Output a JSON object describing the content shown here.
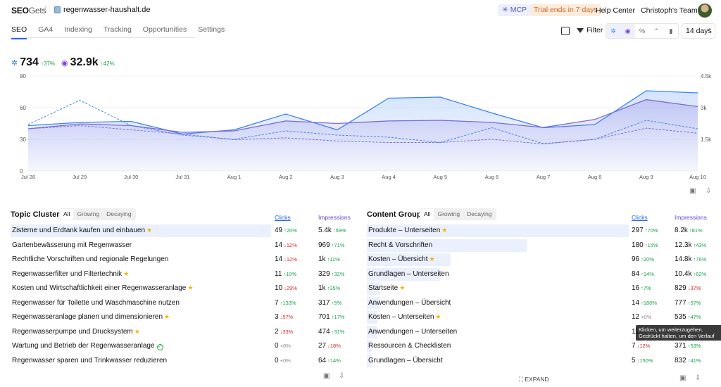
{
  "header": {
    "logo_main": "SEO",
    "logo_sub": "Gets",
    "site": "regenwasser-haushalt.de",
    "mcp": "✳ MCP",
    "trial": "Trial ends in 7 days",
    "help": "Help Center",
    "team": "Christoph's Team"
  },
  "tabs": [
    "SEO",
    "GA4",
    "Indexing",
    "Tracking",
    "Opportunities",
    "Settings"
  ],
  "toolbar": {
    "filter": "Filter",
    "days": "14 days"
  },
  "metrics": {
    "clicks": {
      "value": "734",
      "change": "↑37%"
    },
    "impressions": {
      "value": "32.9k",
      "change": "↑42%"
    }
  },
  "colors": {
    "clicks": "#3b82f6",
    "impressions": "#7c6ad6",
    "up": "#16a34a",
    "down": "#dc2626"
  },
  "chart_data": {
    "type": "area",
    "x": [
      "Jul 28",
      "Jul 29",
      "Jul 30",
      "Jul 31",
      "Aug 1",
      "Aug 2",
      "Aug 3",
      "Aug 4",
      "Aug 5",
      "Aug 6",
      "Aug 7",
      "Aug 8",
      "Aug 9",
      "Aug 10"
    ],
    "left_axis": {
      "ticks": [
        0,
        30,
        60,
        90
      ],
      "ylim": [
        0,
        90
      ]
    },
    "right_axis": {
      "ticks": [
        "1.5k",
        "3k",
        "4.5k"
      ],
      "tick_values": [
        1500,
        3000,
        4500
      ],
      "ylim": [
        0,
        4500
      ]
    },
    "series": [
      {
        "key": "clicks",
        "axis": "left",
        "style": "solid",
        "values": [
          43,
          46,
          47,
          35,
          39,
          54,
          39,
          69,
          70,
          55,
          41,
          44,
          76,
          74
        ]
      },
      {
        "key": "impressions",
        "axis": "right",
        "style": "solid",
        "values": [
          2000,
          2230,
          2150,
          1830,
          1900,
          2370,
          2250,
          2370,
          2400,
          2300,
          2060,
          2440,
          3380,
          3050
        ]
      },
      {
        "key": "clicks_prev",
        "axis": "left",
        "style": "dashed",
        "values": [
          44,
          67,
          43,
          34,
          30,
          38,
          34,
          32,
          27,
          41,
          26,
          30,
          48,
          40
        ]
      },
      {
        "key": "impressions_prev",
        "axis": "right",
        "style": "dashed",
        "values": [
          2000,
          2150,
          1950,
          1750,
          1480,
          1570,
          1420,
          1350,
          1350,
          1500,
          1280,
          1500,
          2030,
          1790
        ]
      }
    ]
  },
  "topic_clusters": {
    "title": "Topic Clusters",
    "filters": [
      "All",
      "Growing",
      "Decaying"
    ],
    "col_clicks": "Clicks",
    "col_impressions": "Impressions",
    "rows": [
      {
        "name": "Zisterne und Erdtank kaufen und einbauen",
        "star": true,
        "check": false,
        "bar": 1.0,
        "clicks": "49",
        "cd": "↑20%",
        "cdir": "up",
        "impr": "5.4k",
        "id": "↑59%",
        "idir": "up"
      },
      {
        "name": "Gartenbewässerung mit Regenwasser",
        "star": false,
        "check": false,
        "bar": 0.0,
        "clicks": "14",
        "cd": "↓12%",
        "cdir": "down",
        "impr": "969",
        "id": "↑71%",
        "idir": "up"
      },
      {
        "name": "Rechtliche Vorschriften und regionale Regelungen",
        "star": false,
        "check": false,
        "bar": 0.0,
        "clicks": "14",
        "cd": "↓12%",
        "cdir": "down",
        "impr": "1k",
        "id": "↑11%",
        "idir": "up"
      },
      {
        "name": "Regenwasserfilter und Filtertechnik",
        "star": true,
        "check": false,
        "bar": 0.0,
        "clicks": "11",
        "cd": "↑10%",
        "cdir": "up",
        "impr": "329",
        "id": "↑32%",
        "idir": "up"
      },
      {
        "name": "Kosten und Wirtschaftlichkeit einer Regenwasseranlage",
        "star": true,
        "check": false,
        "bar": 0.0,
        "clicks": "10",
        "cd": "↓29%",
        "cdir": "down",
        "impr": "1k",
        "id": "↑35%",
        "idir": "up"
      },
      {
        "name": "Regenwasser für Toilette und Waschmaschine nutzen",
        "star": false,
        "check": false,
        "bar": 0.0,
        "clicks": "7",
        "cd": "↑133%",
        "cdir": "up",
        "impr": "317",
        "id": "↑5%",
        "idir": "up"
      },
      {
        "name": "Regenwasseranlage planen und dimensionieren",
        "star": true,
        "check": false,
        "bar": 0.0,
        "clicks": "3",
        "cd": "↓57%",
        "cdir": "down",
        "impr": "701",
        "id": "↑17%",
        "idir": "up"
      },
      {
        "name": "Regenwasserpumpe und Drucksystem",
        "star": true,
        "check": false,
        "bar": 0.0,
        "clicks": "2",
        "cd": "↓33%",
        "cdir": "down",
        "impr": "474",
        "id": "↑31%",
        "idir": "up"
      },
      {
        "name": "Wartung und Betrieb der Regenwasseranlage",
        "star": false,
        "check": true,
        "bar": 0.0,
        "clicks": "0",
        "cd": "+0%",
        "cdir": "neu",
        "impr": "27",
        "id": "↓18%",
        "idir": "down"
      },
      {
        "name": "Regenwasser sparen und Trinkwasser reduzieren",
        "star": false,
        "check": false,
        "bar": 0.0,
        "clicks": "0",
        "cd": "+0%",
        "cdir": "neu",
        "impr": "64",
        "id": "↑14%",
        "idir": "up"
      }
    ]
  },
  "content_groups": {
    "title": "Content Groups",
    "filters": [
      "All",
      "Growing",
      "Decaying"
    ],
    "col_clicks": "Clicks",
    "col_impressions": "Impressions",
    "rows": [
      {
        "name": "Produkte – Unterseiten",
        "star": true,
        "bar": 1.0,
        "clicks": "297",
        "cd": "↑70%",
        "cdir": "up",
        "impr": "8.2k",
        "id": "↑81%",
        "idir": "up"
      },
      {
        "name": "Recht & Vorschriften",
        "star": false,
        "bar": 0.61,
        "clicks": "180",
        "cd": "↑15%",
        "cdir": "up",
        "impr": "12.3k",
        "id": "↑43%",
        "idir": "up"
      },
      {
        "name": "Kosten – Übersicht",
        "star": true,
        "bar": 0.32,
        "clicks": "96",
        "cd": "↑20%",
        "cdir": "up",
        "impr": "14.8k",
        "id": "↑76%",
        "idir": "up"
      },
      {
        "name": "Grundlagen – Unterseiten",
        "star": false,
        "bar": 0.28,
        "clicks": "84",
        "cd": "↑14%",
        "cdir": "up",
        "impr": "10.4k",
        "id": "↑62%",
        "idir": "up"
      },
      {
        "name": "Startseite",
        "star": true,
        "bar": 0.05,
        "clicks": "16",
        "cd": "↑7%",
        "cdir": "up",
        "impr": "829",
        "id": "↓37%",
        "idir": "down"
      },
      {
        "name": "Anwendungen – Übersicht",
        "star": false,
        "bar": 0.05,
        "clicks": "14",
        "cd": "↑180%",
        "cdir": "up",
        "impr": "777",
        "id": "↑57%",
        "idir": "up"
      },
      {
        "name": "Kosten – Unterseiten",
        "star": true,
        "bar": 0.04,
        "clicks": "12",
        "cd": "+0%",
        "cdir": "neu",
        "impr": "535",
        "id": "↑47%",
        "idir": "up"
      },
      {
        "name": "Anwendungen – Unterseiten",
        "star": false,
        "bar": 0.04,
        "clicks": "11",
        "cd": "",
        "cdir": "neu",
        "impr": "",
        "id": "",
        "idir": "up"
      },
      {
        "name": "Ressourcen & Checklisten",
        "star": false,
        "bar": 0.02,
        "clicks": "7",
        "cd": "↓12%",
        "cdir": "down",
        "impr": "371",
        "id": "↑53%",
        "idir": "up"
      },
      {
        "name": "Grundlagen – Übersicht",
        "star": false,
        "bar": 0.02,
        "clicks": "5",
        "cd": "↑150%",
        "cdir": "up",
        "impr": "832",
        "id": "↑41%",
        "idir": "up"
      }
    ]
  },
  "tooltip": "Klicken, um weiterzugehen. Gedrückt halten, um den Verlauf aufzurufen",
  "expand": "EXPAND"
}
